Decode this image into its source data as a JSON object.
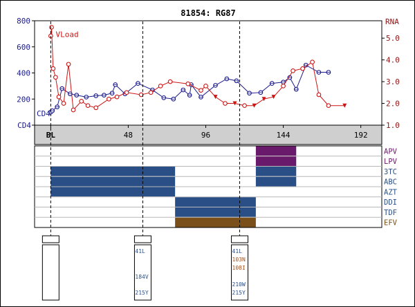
{
  "chart_data": {
    "type": "line",
    "title": "81854: RG87",
    "left_axis": {
      "label": "CD4",
      "ticks": [
        0,
        200,
        400,
        600,
        800
      ],
      "ylim": [
        0,
        800
      ]
    },
    "right_axis": {
      "label": "RNA",
      "ticks": [
        "1.0",
        "2.0",
        "3.0",
        "4.0",
        "5.0"
      ],
      "ylim": [
        1.0,
        5.8
      ]
    },
    "x_axis": {
      "tick_labels": [
        "BL",
        "48",
        "96",
        "144",
        "192"
      ],
      "tick_values": [
        0,
        48,
        96,
        144,
        192
      ],
      "xlim": [
        -10,
        205
      ]
    },
    "series": [
      {
        "name": "CD4",
        "axis": "left",
        "color": "#1a1a8c",
        "x": [
          0,
          1,
          4,
          7,
          12,
          16,
          22,
          28,
          33,
          38,
          40,
          46,
          54,
          63,
          70,
          76,
          82,
          86,
          87,
          93,
          102,
          109,
          115,
          123,
          130,
          137,
          144,
          148,
          152,
          158,
          166,
          172
        ],
        "y": [
          100,
          110,
          140,
          280,
          240,
          230,
          215,
          225,
          230,
          245,
          310,
          240,
          320,
          270,
          210,
          200,
          270,
          230,
          310,
          215,
          305,
          355,
          340,
          245,
          250,
          320,
          330,
          365,
          275,
          460,
          405,
          405
        ]
      },
      {
        "name": "VLoad",
        "axis": "right",
        "color": "#cc1414",
        "x": [
          0,
          0.5,
          1.5,
          3,
          5,
          8,
          11,
          14,
          19,
          23,
          28,
          36,
          41,
          47,
          56,
          62,
          68,
          74,
          85,
          93,
          96,
          102,
          108,
          114,
          120,
          126,
          132,
          138,
          144,
          150,
          156,
          162,
          166,
          172,
          182
        ],
        "y": [
          5.1,
          5.5,
          3.6,
          3.2,
          2.3,
          2.0,
          3.8,
          1.7,
          2.1,
          1.9,
          1.8,
          2.2,
          2.3,
          2.5,
          2.4,
          2.5,
          2.8,
          3.0,
          2.9,
          2.6,
          2.8,
          2.3,
          2.0,
          2.0,
          1.9,
          1.9,
          2.2,
          2.3,
          2.8,
          3.5,
          3.6,
          3.9,
          2.4,
          1.9,
          1.9
        ],
        "below_detection_at": [
          102,
          114,
          126,
          132,
          138,
          182
        ]
      }
    ],
    "visit_lines": [
      0,
      57,
      117
    ],
    "drugs": [
      {
        "name": "APV",
        "color": "#6a1a6a",
        "bars": [
          [
            127,
            152
          ]
        ]
      },
      {
        "name": "LPV",
        "color": "#6a1a6a",
        "bars": [
          [
            127,
            152
          ]
        ]
      },
      {
        "name": "3TC",
        "color": "#2a4f86",
        "bars": [
          [
            0,
            77
          ],
          [
            127,
            152
          ]
        ]
      },
      {
        "name": "ABC",
        "color": "#2a4f86",
        "bars": [
          [
            0,
            77
          ],
          [
            127,
            152
          ]
        ]
      },
      {
        "name": "AZT",
        "color": "#2a4f86",
        "bars": [
          [
            0,
            77
          ]
        ]
      },
      {
        "name": "DDI",
        "color": "#2a4f86",
        "bars": [
          [
            77,
            127
          ]
        ]
      },
      {
        "name": "TDF",
        "color": "#2a4f86",
        "bars": [
          [
            77,
            127
          ]
        ]
      },
      {
        "name": "EFV",
        "color": "#7a4f1a",
        "bars": [
          [
            77,
            127
          ]
        ]
      }
    ],
    "drug_label_colors": {
      "APV": "#6a1a6a",
      "LPV": "#6a1a6a",
      "3TC": "#2a4f86",
      "ABC": "#2a4f86",
      "AZT": "#2a4f86",
      "DDI": "#2a4f86",
      "TDF": "#2a4f86",
      "EFV": "#7a4f1a"
    },
    "genotypes": [
      {
        "at": 0,
        "mutations": []
      },
      {
        "at": 57,
        "mutations": [
          {
            "text": "41L",
            "color": "#2a4f86",
            "slot": 0
          },
          {
            "text": "184V",
            "color": "#2a4f86",
            "slot": 3
          },
          {
            "text": "215Y",
            "color": "#2a4f86",
            "slot": 5
          }
        ]
      },
      {
        "at": 117,
        "mutations": [
          {
            "text": "41L",
            "color": "#2a4f86",
            "slot": 0
          },
          {
            "text": "103N",
            "color": "#a0501a",
            "slot": 1
          },
          {
            "text": "108I",
            "color": "#a0501a",
            "slot": 2
          },
          {
            "text": "210W",
            "color": "#2a4f86",
            "slot": 4
          },
          {
            "text": "215Y",
            "color": "#2a4f86",
            "slot": 5
          }
        ]
      }
    ]
  }
}
